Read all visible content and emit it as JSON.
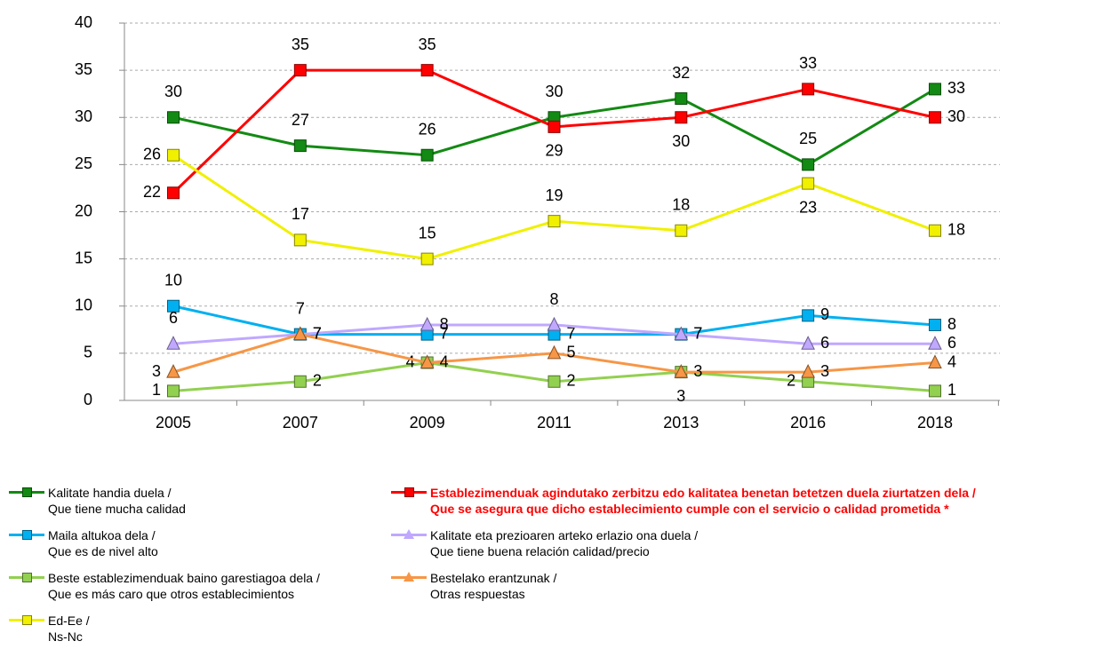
{
  "chart_data": {
    "type": "line",
    "categories": [
      "2005",
      "2007",
      "2009",
      "2011",
      "2013",
      "2016",
      "2018"
    ],
    "ylim": [
      0,
      40
    ],
    "yticks": [
      0,
      5,
      10,
      15,
      20,
      25,
      30,
      35,
      40
    ],
    "grid": true,
    "series": [
      {
        "name": "Kalitate handia duela /\nQue tiene mucha calidad",
        "color": "#138a13",
        "marker": "square",
        "values": [
          30,
          27,
          26,
          30,
          32,
          25,
          33
        ]
      },
      {
        "name": "Establezimenduak agindutako zerbitzu edo kalitatea benetan betetzen duela ziurtatzen dela /\nQue se asegura que dicho establecimiento cumple con el servicio o calidad prometida *",
        "color": "#ff0000",
        "marker": "square",
        "values": [
          22,
          35,
          35,
          29,
          30,
          33,
          30
        ]
      },
      {
        "name": "Maila altukoa dela /\nQue es de nivel alto",
        "color": "#00b0f0",
        "marker": "square",
        "values": [
          10,
          7,
          7,
          7,
          7,
          9,
          8
        ]
      },
      {
        "name": "Kalitate eta prezioaren arteko erlazio ona duela /\nQue tiene buena relación calidad/precio",
        "color": "#c0a8ff",
        "marker": "triangle",
        "values": [
          6,
          7,
          8,
          8,
          7,
          6,
          6
        ]
      },
      {
        "name": "Beste establezimenduak baino garestiagoa dela /\nQue es más caro que otros establecimientos",
        "color": "#92d050",
        "marker": "square",
        "values": [
          1,
          2,
          4,
          2,
          3,
          2,
          1
        ]
      },
      {
        "name": "Bestelako erantzunak /\nOtras respuestas",
        "color": "#f79646",
        "marker": "triangle",
        "values": [
          3,
          7,
          4,
          5,
          3,
          3,
          4
        ]
      },
      {
        "name": "Ed-Ee /\nNs-Nc",
        "color": "#f0f000",
        "marker": "square",
        "values": [
          26,
          17,
          15,
          19,
          18,
          23,
          18
        ]
      }
    ]
  }
}
